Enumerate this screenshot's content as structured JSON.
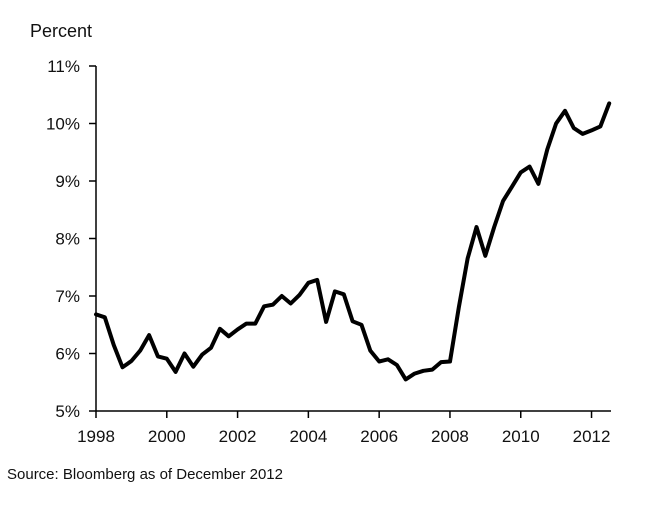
{
  "chart_data": {
    "type": "line",
    "title": "",
    "ylabel": "Percent",
    "xlabel": "",
    "xlim": [
      1998.0,
      2012.55
    ],
    "ylim": [
      5,
      11
    ],
    "x_ticks": [
      1998,
      2000,
      2002,
      2004,
      2006,
      2008,
      2010,
      2012
    ],
    "y_ticks": [
      {
        "value": 5,
        "label": "5%"
      },
      {
        "value": 6,
        "label": "6%"
      },
      {
        "value": 7,
        "label": "7%"
      },
      {
        "value": 8,
        "label": "8%"
      },
      {
        "value": 9,
        "label": "9%"
      },
      {
        "value": 10,
        "label": "10%"
      },
      {
        "value": 11,
        "label": "11%"
      }
    ],
    "grid": false,
    "legend": "none",
    "line_color": "#000000",
    "series": [
      {
        "x": [
          1998.0,
          1998.25,
          1998.5,
          1998.75,
          1999.0,
          1999.25,
          1999.5,
          1999.75,
          2000.0,
          2000.25,
          2000.5,
          2000.75,
          2001.0,
          2001.25,
          2001.5,
          2001.75,
          2002.0,
          2002.25,
          2002.5,
          2002.75,
          2003.0,
          2003.25,
          2003.5,
          2003.75,
          2004.0,
          2004.25,
          2004.5,
          2004.75,
          2005.0,
          2005.25,
          2005.5,
          2005.75,
          2006.0,
          2006.25,
          2006.5,
          2006.75,
          2007.0,
          2007.25,
          2007.5,
          2007.75,
          2008.0,
          2008.25,
          2008.5,
          2008.75,
          2009.0,
          2009.25,
          2009.5,
          2009.75,
          2010.0,
          2010.25,
          2010.5,
          2010.75,
          2011.0,
          2011.25,
          2011.5,
          2011.75,
          2012.0,
          2012.25,
          2012.5
        ],
        "y": [
          6.68,
          6.63,
          6.15,
          5.76,
          5.87,
          6.05,
          6.32,
          5.95,
          5.91,
          5.68,
          6.0,
          5.77,
          5.98,
          6.1,
          6.43,
          6.3,
          6.42,
          6.52,
          6.52,
          6.82,
          6.85,
          7.0,
          6.87,
          7.02,
          7.23,
          7.28,
          6.55,
          7.08,
          7.03,
          6.56,
          6.5,
          6.05,
          5.86,
          5.9,
          5.8,
          5.55,
          5.65,
          5.7,
          5.72,
          5.85,
          5.86,
          6.8,
          7.65,
          8.2,
          7.7,
          8.2,
          8.65,
          8.9,
          9.15,
          9.25,
          8.95,
          9.55,
          10.0,
          10.22,
          9.92,
          9.82,
          9.88,
          9.95,
          10.35
        ]
      }
    ]
  },
  "source_note": "Source: Bloomberg as of December 2012"
}
